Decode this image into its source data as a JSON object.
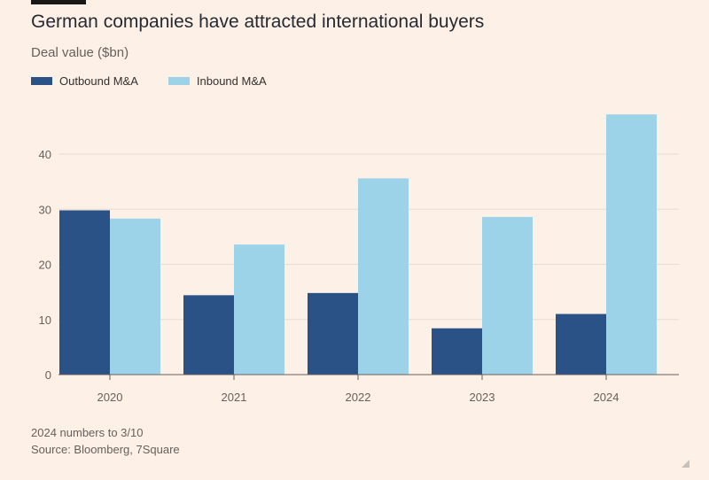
{
  "title": "German companies have attracted international buyers",
  "subtitle": "Deal value ($bn)",
  "legend": [
    {
      "label": "Outbound M&A",
      "color": "#2a5286"
    },
    {
      "label": "Inbound M&A",
      "color": "#9dd3e9"
    }
  ],
  "footnotes": {
    "note": "2024 numbers to 3/10",
    "source": "Source: Bloomberg, 7Square"
  },
  "chart_data": {
    "type": "bar",
    "title": "German companies have attracted international buyers",
    "ylabel": "Deal value ($bn)",
    "categories": [
      "2020",
      "2021",
      "2022",
      "2023",
      "2024"
    ],
    "series": [
      {
        "name": "Outbound M&A",
        "color": "#2a5286",
        "values": [
          29.8,
          14.4,
          14.8,
          8.4,
          11.0
        ]
      },
      {
        "name": "Inbound M&A",
        "color": "#9dd3e9",
        "values": [
          28.3,
          23.6,
          35.6,
          28.6,
          47.2
        ]
      }
    ],
    "yticks": [
      0,
      10,
      20,
      30,
      40
    ],
    "ylim": [
      0,
      48
    ],
    "grid": true,
    "legend_position": "top-left"
  }
}
